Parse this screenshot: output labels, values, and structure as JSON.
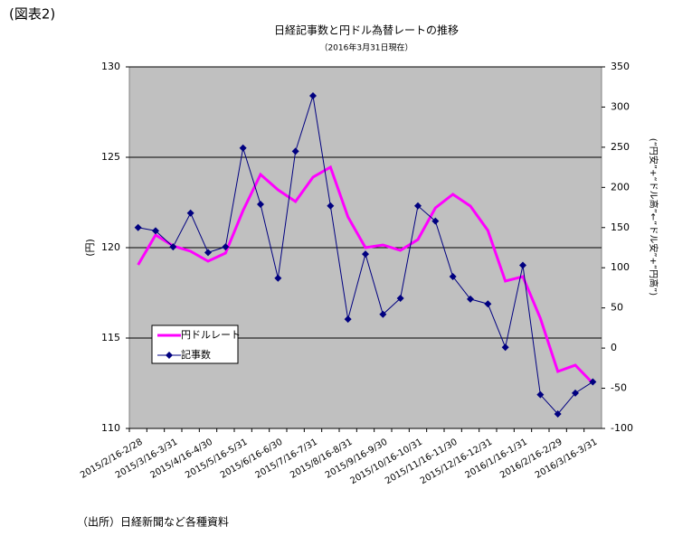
{
  "figure_label": "(図表2)",
  "source": "（出所）日経新聞など各種資料",
  "chart_data": {
    "type": "line",
    "title": "日経記事数と円ドル為替レートの推移",
    "subtitle": "（2016年3月31日現在）",
    "y_label": "(円)",
    "y2_label": "(“円安”+“ドル高”←“ドル安”+“円高”)",
    "categories": [
      "2015/2/16-2/28",
      null,
      "2015/3/16-3/31",
      null,
      "2015/4/16-4/30",
      null,
      "2015/5/16-5/31",
      null,
      "2015/6/16-6/30",
      null,
      "2015/7/16-7/31",
      null,
      "2015/8/16-8/31",
      null,
      "2015/9/16-9/30",
      null,
      "2015/10/16-10/31",
      null,
      "2015/11/16-11/30",
      null,
      "2015/12/16-12/31",
      null,
      "2016/1/16-1/31",
      null,
      "2016/2/16-2/29",
      null,
      "2016/3/16-3/31"
    ],
    "series": [
      {
        "name": "円ドルレート",
        "color": "#ff00ff",
        "values": [
          119.05,
          120.7,
          120.1,
          119.8,
          119.25,
          119.7,
          122.05,
          124.05,
          123.2,
          122.55,
          123.9,
          124.45,
          121.7,
          120.0,
          120.15,
          119.85,
          120.45,
          122.2,
          122.95,
          122.3,
          120.95,
          118.15,
          118.4,
          116.1,
          113.15,
          113.5,
          112.5
        ]
      },
      {
        "name": "記事数",
        "color": "#000080",
        "axis": "y2",
        "values": [
          150,
          146,
          126,
          168,
          119,
          126,
          249,
          179,
          87,
          245,
          314,
          177,
          36,
          117,
          42,
          62,
          177,
          158,
          89,
          61,
          55,
          1,
          103,
          -58,
          -82,
          -56,
          -42
        ]
      }
    ],
    "ylim": [
      110,
      130
    ],
    "yticks": [
      110,
      115,
      120,
      125,
      130
    ],
    "y2lim": [
      -100,
      350
    ],
    "y2ticks": [
      -100,
      -50,
      0,
      50,
      100,
      150,
      200,
      250,
      300,
      350
    ],
    "grid": true,
    "plot_background": "#c0c0c0"
  }
}
